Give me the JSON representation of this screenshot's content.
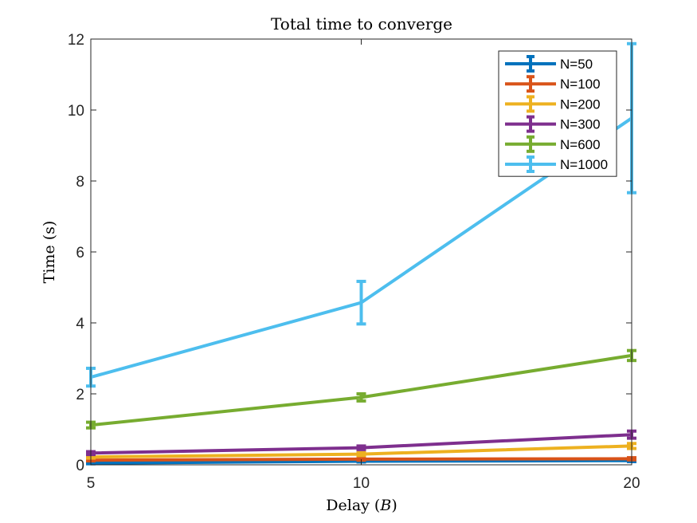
{
  "chart_data": {
    "type": "line",
    "title": "Total time to converge",
    "xlabel_main": "Delay (",
    "xlabel_symbol": "B",
    "xlabel_close": ")",
    "ylabel": "Time (s)",
    "x": [
      5,
      10,
      20
    ],
    "x_tick_labels": [
      "5",
      "10",
      "20"
    ],
    "y_ticks": [
      0,
      2,
      4,
      6,
      8,
      10,
      12
    ],
    "y_tick_labels": [
      "0",
      "2",
      "4",
      "6",
      "8",
      "10",
      "12"
    ],
    "xlim": [
      5,
      20
    ],
    "ylim": [
      0,
      12
    ],
    "x_scale": "log",
    "grid": false,
    "legend_position": "top-right",
    "series": [
      {
        "name": "N=50",
        "color": "#0072BD",
        "values": [
          0.05,
          0.1,
          0.12
        ],
        "errors": [
          0.02,
          0.02,
          0.03
        ]
      },
      {
        "name": "N=100",
        "color": "#D95319",
        "values": [
          0.13,
          0.16,
          0.17
        ],
        "errors": [
          0.02,
          0.03,
          0.03
        ]
      },
      {
        "name": "N=200",
        "color": "#EDB120",
        "values": [
          0.22,
          0.3,
          0.53
        ],
        "errors": [
          0.03,
          0.04,
          0.07
        ]
      },
      {
        "name": "N=300",
        "color": "#7E2F8E",
        "values": [
          0.33,
          0.48,
          0.85
        ],
        "errors": [
          0.04,
          0.05,
          0.1
        ]
      },
      {
        "name": "N=600",
        "color": "#77AC30",
        "values": [
          1.12,
          1.9,
          3.08
        ],
        "errors": [
          0.08,
          0.1,
          0.14
        ]
      },
      {
        "name": "N=1000",
        "color": "#4DBEEE",
        "values": [
          2.47,
          4.57,
          9.77
        ],
        "errors": [
          0.25,
          0.6,
          2.1
        ]
      }
    ]
  }
}
